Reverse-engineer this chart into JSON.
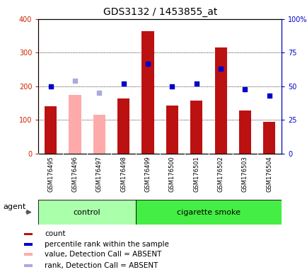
{
  "title": "GDS3132 / 1453855_at",
  "samples": [
    "GSM176495",
    "GSM176496",
    "GSM176497",
    "GSM176498",
    "GSM176499",
    "GSM176500",
    "GSM176501",
    "GSM176502",
    "GSM176503",
    "GSM176504"
  ],
  "counts": [
    140,
    0,
    0,
    165,
    365,
    142,
    158,
    315,
    128,
    95
  ],
  "absent_counts": [
    0,
    175,
    115,
    0,
    0,
    0,
    0,
    0,
    0,
    0
  ],
  "percentile_ranks": [
    50,
    0,
    0,
    52,
    67,
    50,
    52,
    63,
    48,
    43
  ],
  "absent_ranks": [
    0,
    54,
    45,
    0,
    0,
    0,
    0,
    0,
    0,
    0
  ],
  "absent_flags": [
    false,
    true,
    true,
    false,
    false,
    false,
    false,
    false,
    false,
    false
  ],
  "group_labels": [
    "control",
    "cigarette smoke"
  ],
  "control_count": 4,
  "smoke_count": 6,
  "control_color": "#aaffaa",
  "smoke_color": "#44ee44",
  "ylim_left": [
    0,
    400
  ],
  "ylim_right": [
    0,
    100
  ],
  "yticks_left": [
    0,
    100,
    200,
    300,
    400
  ],
  "yticks_right": [
    0,
    25,
    50,
    75,
    100
  ],
  "bar_color_normal": "#bb1111",
  "bar_color_absent": "#ffaaaa",
  "dot_color_normal": "#0000cc",
  "dot_color_absent": "#aaaadd",
  "tick_bg_color": "#cccccc",
  "plot_bg": "#ffffff",
  "agent_label": "agent",
  "bar_width": 0.5
}
